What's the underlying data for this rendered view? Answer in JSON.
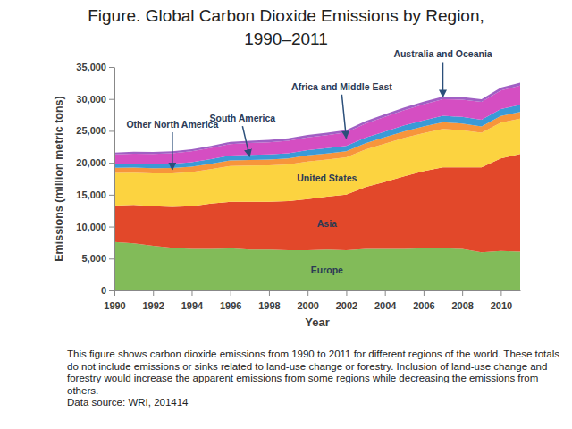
{
  "chart_data": {
    "type": "area",
    "title": "Figure. Global Carbon Dioxide Emissions by Region, 1990–2011",
    "x_label": "Year",
    "y_label": "Emissions (million metric tons)",
    "caption": "This figure shows carbon dioxide emissions from 1990 to 2011 for different regions of the world. These totals do not include emissions or sinks related to land-use change or forestry. Inclusion of land-use change and forestry would increase the apparent emissions from some regions while decreasing the emissions from others.",
    "source": "Data source: WRI, 201414",
    "stacked": true,
    "grid": false,
    "x": [
      1990,
      1991,
      1992,
      1993,
      1994,
      1995,
      1996,
      1997,
      1998,
      1999,
      2000,
      2001,
      2002,
      2003,
      2004,
      2005,
      2006,
      2007,
      2008,
      2009,
      2010,
      2011
    ],
    "xlim": [
      1990,
      2011
    ],
    "xticks": [
      1990,
      1992,
      1994,
      1996,
      1998,
      2000,
      2002,
      2004,
      2006,
      2008,
      2010
    ],
    "ylim": [
      0,
      35000
    ],
    "yticks": [
      0,
      {
        "value": 5000,
        "label": "5,000"
      },
      {
        "value": 10000,
        "label": "10,000"
      },
      {
        "value": 15000,
        "label": "15,000"
      },
      {
        "value": 20000,
        "label": "20,000"
      },
      {
        "value": 25000,
        "label": "25,000"
      },
      {
        "value": 30000,
        "label": "30,000"
      },
      {
        "value": 35000,
        "label": "35,000"
      }
    ],
    "series": [
      {
        "name": "Europe",
        "color": "#82bb59",
        "values": [
          7600,
          7400,
          7000,
          6700,
          6500,
          6500,
          6600,
          6400,
          6400,
          6300,
          6300,
          6400,
          6300,
          6500,
          6500,
          6500,
          6600,
          6600,
          6500,
          6000,
          6200,
          6100
        ]
      },
      {
        "name": "Asia",
        "color": "#e2482a",
        "values": [
          5700,
          6000,
          6200,
          6400,
          6700,
          7100,
          7300,
          7500,
          7500,
          7700,
          8000,
          8300,
          8700,
          9700,
          10500,
          11400,
          12100,
          12700,
          12800,
          13300,
          14500,
          15300
        ]
      },
      {
        "name": "United States",
        "color": "#fcd340",
        "values": [
          5100,
          5050,
          5150,
          5250,
          5350,
          5400,
          5600,
          5650,
          5700,
          5750,
          5900,
          5800,
          5850,
          5900,
          6000,
          6000,
          5950,
          6000,
          5800,
          5400,
          5600,
          5500
        ]
      },
      {
        "name": "Other North America",
        "color": "#f7953b",
        "values": [
          800,
          790,
          810,
          830,
          850,
          860,
          880,
          900,
          910,
          930,
          960,
          950,
          960,
          980,
          1000,
          1020,
          1030,
          1060,
          1050,
          1000,
          1050,
          1080
        ]
      },
      {
        "name": "South America",
        "color": "#3a9ad6",
        "values": [
          600,
          620,
          640,
          660,
          690,
          720,
          760,
          790,
          810,
          820,
          830,
          840,
          840,
          860,
          900,
          930,
          960,
          1000,
          1040,
          1030,
          1080,
          1120
        ]
      },
      {
        "name": "Africa and Middle East",
        "color": "#d54ec2",
        "values": [
          1500,
          1560,
          1600,
          1650,
          1700,
          1750,
          1800,
          1850,
          1900,
          1950,
          2000,
          2050,
          2100,
          2200,
          2300,
          2400,
          2500,
          2600,
          2700,
          2800,
          2900,
          3000
        ]
      },
      {
        "name": "Australia and Oceania",
        "color": "#a060c4",
        "values": [
          300,
          305,
          310,
          315,
          320,
          330,
          340,
          350,
          360,
          370,
          380,
          385,
          390,
          395,
          400,
          410,
          420,
          425,
          430,
          430,
          440,
          445
        ]
      }
    ]
  }
}
